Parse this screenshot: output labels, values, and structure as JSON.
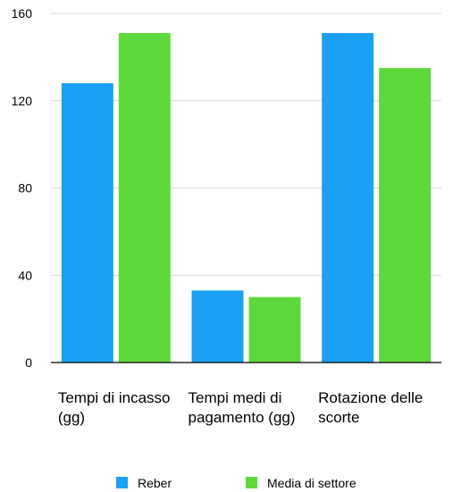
{
  "chart_data": {
    "type": "bar",
    "categories": [
      [
        "Tempi di incasso",
        "(gg)"
      ],
      [
        "Tempi medi di",
        "pagamento (gg)"
      ],
      [
        "Rotazione delle",
        "scorte"
      ]
    ],
    "series": [
      {
        "name": "Reber",
        "color": "#1aa0f5",
        "values": [
          128,
          33,
          151
        ]
      },
      {
        "name": "Media di settore",
        "color": "#5ed93c",
        "values": [
          151,
          30,
          135
        ]
      }
    ],
    "yticks": [
      0,
      40,
      80,
      120,
      160
    ],
    "ylim": [
      0,
      160
    ],
    "grid": true,
    "legend_position": "bottom"
  }
}
